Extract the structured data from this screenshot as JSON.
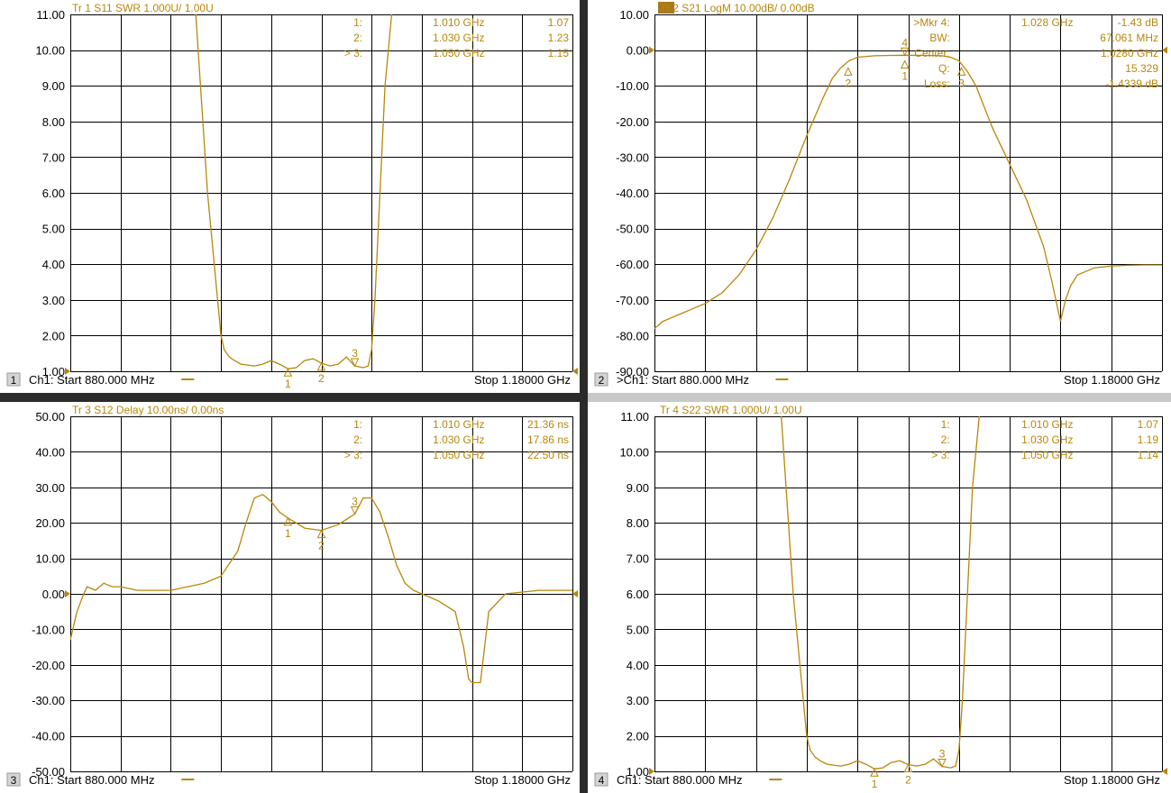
{
  "colors": {
    "trace": "#b8860b",
    "grid": "#000000",
    "label_text": "#000000",
    "marker_text": "#b8860b",
    "active_title_bg": "#a9791d",
    "divider": "#2b2b2b"
  },
  "panes": [
    {
      "number": "1",
      "title": "Tr 1  S11 SWR 1.000U/  1.00U",
      "title_active": false,
      "yticks": [
        "11.00",
        "10.00",
        "9.00",
        "8.00",
        "7.00",
        "6.00",
        "5.00",
        "4.00",
        "3.00",
        "2.00",
        "1.00"
      ],
      "ref_value": 1,
      "start": "Ch1: Start  880.000 MHz",
      "stop": "Stop  1.18000 GHz",
      "marker_table": [
        {
          "id": "1:",
          "freq": "1.010 GHz",
          "val": "1.07"
        },
        {
          "id": "2:",
          "freq": "1.030 GHz",
          "val": "1.23"
        },
        {
          "id": "> 3:",
          "freq": "1.050 GHz",
          "val": "1.15"
        }
      ],
      "markers": [
        {
          "label": "1",
          "x": 1.01,
          "y": 1.07,
          "dir": "up"
        },
        {
          "label": "2",
          "x": 1.03,
          "y": 1.23,
          "dir": "up"
        },
        {
          "label": "3",
          "x": 1.05,
          "y": 1.15,
          "dir": "down"
        }
      ]
    },
    {
      "number": "2",
      "title": "Tr 2  S21 LogM 10.00dB/  0.00dB",
      "title_active": true,
      "yticks": [
        "10.00",
        "0.00",
        "-10.00",
        "-20.00",
        "-30.00",
        "-40.00",
        "-50.00",
        "-60.00",
        "-70.00",
        "-80.00",
        "-90.00"
      ],
      "ref_value": 0,
      "start": ">Ch1: Start  880.000 MHz",
      "stop": "Stop  1.18000 GHz",
      "marker_table": [
        {
          "id": ">Mkr 4:",
          "freq": "1.028 GHz",
          "val": "-1.43 dB"
        },
        {
          "id": "BW:",
          "freq": "",
          "val": "67.061 MHz"
        },
        {
          "id": "Center:",
          "freq": "",
          "val": "1.0280 GHz"
        },
        {
          "id": "Q:",
          "freq": "",
          "val": "15.329"
        },
        {
          "id": "Loss:",
          "freq": "",
          "val": "-1.4339 dB"
        }
      ],
      "markers": [
        {
          "label": "1",
          "x": 1.028,
          "y": -3.0,
          "dir": "up"
        },
        {
          "label": "2",
          "x": 0.9945,
          "y": -5.0,
          "dir": "up"
        },
        {
          "label": "3",
          "x": 1.0615,
          "y": -5.0,
          "dir": "up"
        },
        {
          "label": "4",
          "x": 1.028,
          "y": -1.43,
          "dir": "down"
        }
      ]
    },
    {
      "number": "3",
      "title": "Tr 3  S12 Delay 10.00ns/  0.00ns",
      "title_active": false,
      "yticks": [
        "50.00",
        "40.00",
        "30.00",
        "20.00",
        "10.00",
        "0.00",
        "-10.00",
        "-20.00",
        "-30.00",
        "-40.00",
        "-50.00"
      ],
      "ref_value": 0,
      "start": "Ch1: Start  880.000 MHz",
      "stop": "Stop  1.18000 GHz",
      "marker_table": [
        {
          "id": "1:",
          "freq": "1.010 GHz",
          "val": "21.36 ns"
        },
        {
          "id": "2:",
          "freq": "1.030 GHz",
          "val": "17.86 ns"
        },
        {
          "id": "> 3:",
          "freq": "1.050 GHz",
          "val": "22.50 ns"
        }
      ],
      "markers": [
        {
          "label": "1",
          "x": 1.01,
          "y": 21.36,
          "dir": "up"
        },
        {
          "label": "2",
          "x": 1.03,
          "y": 17.86,
          "dir": "up"
        },
        {
          "label": "3",
          "x": 1.05,
          "y": 22.5,
          "dir": "down"
        }
      ]
    },
    {
      "number": "4",
      "title": "Tr 4  S22 SWR 1.000U/  1.00U",
      "title_active": false,
      "yticks": [
        "11.00",
        "10.00",
        "9.00",
        "8.00",
        "7.00",
        "6.00",
        "5.00",
        "4.00",
        "3.00",
        "2.00",
        "1.00"
      ],
      "ref_value": 1,
      "start": "Ch1: Start  880.000 MHz",
      "stop": "Stop  1.18000 GHz",
      "marker_table": [
        {
          "id": "1:",
          "freq": "1.010 GHz",
          "val": "1.07"
        },
        {
          "id": "2:",
          "freq": "1.030 GHz",
          "val": "1.19"
        },
        {
          "id": "> 3:",
          "freq": "1.050 GHz",
          "val": "1.14"
        }
      ],
      "markers": [
        {
          "label": "1",
          "x": 1.01,
          "y": 1.07,
          "dir": "up"
        },
        {
          "label": "2",
          "x": 1.03,
          "y": 1.19,
          "dir": "up"
        },
        {
          "label": "3",
          "x": 1.05,
          "y": 1.14,
          "dir": "down"
        }
      ]
    }
  ],
  "chart_data": [
    {
      "type": "line",
      "title": "Tr 1  S11 SWR 1.000U/  1.00U",
      "xlabel": "",
      "ylabel": "",
      "xlim": [
        0.88,
        1.18
      ],
      "ylim": [
        1,
        11
      ],
      "grid": true,
      "series": [
        {
          "x": [
            0.955,
            0.962,
            0.968,
            0.97,
            0.972,
            0.975,
            0.978,
            0.982,
            0.99,
            0.995,
            1.0,
            1.005,
            1.01,
            1.015,
            1.02,
            1.025,
            1.03,
            1.035,
            1.04,
            1.045,
            1.05,
            1.055,
            1.058,
            1.06,
            1.062,
            1.065,
            1.068,
            1.072
          ],
          "y": [
            11.0,
            6.0,
            3.0,
            2.0,
            1.6,
            1.4,
            1.3,
            1.2,
            1.15,
            1.2,
            1.3,
            1.2,
            1.07,
            1.1,
            1.3,
            1.35,
            1.23,
            1.15,
            1.2,
            1.4,
            1.15,
            1.1,
            1.15,
            1.6,
            3.0,
            6.0,
            9.0,
            11.0
          ]
        }
      ]
    },
    {
      "type": "line",
      "title": "Tr 2  S21 LogM 10.00dB/  0.00dB",
      "xlabel": "",
      "ylabel": "",
      "xlim": [
        0.88,
        1.18
      ],
      "ylim": [
        -90,
        10
      ],
      "grid": true,
      "series": [
        {
          "x": [
            0.88,
            0.885,
            0.89,
            0.895,
            0.9,
            0.905,
            0.91,
            0.92,
            0.93,
            0.94,
            0.95,
            0.96,
            0.97,
            0.98,
            0.985,
            0.99,
            0.995,
            1.0,
            1.01,
            1.02,
            1.028,
            1.04,
            1.05,
            1.055,
            1.06,
            1.065,
            1.07,
            1.075,
            1.08,
            1.09,
            1.1,
            1.11,
            1.115,
            1.12,
            1.123,
            1.126,
            1.13,
            1.14,
            1.15,
            1.16,
            1.17,
            1.18
          ],
          "y": [
            -78,
            -76,
            -75,
            -74,
            -73,
            -72,
            -71,
            -68,
            -63,
            -56,
            -47,
            -36,
            -24,
            -13,
            -8,
            -5,
            -3,
            -2,
            -1.6,
            -1.5,
            -1.43,
            -1.5,
            -1.6,
            -2,
            -3,
            -6,
            -10,
            -16,
            -22,
            -32,
            -42,
            -55,
            -65,
            -76,
            -70,
            -66,
            -63,
            -61,
            -60.5,
            -60.3,
            -60.2,
            -60.2
          ]
        }
      ]
    },
    {
      "type": "line",
      "title": "Tr 3  S12 Delay 10.00ns/  0.00ns",
      "xlabel": "",
      "ylabel": "",
      "xlim": [
        0.88,
        1.18
      ],
      "ylim": [
        -50,
        50
      ],
      "grid": true,
      "series": [
        {
          "x": [
            0.88,
            0.884,
            0.888,
            0.89,
            0.895,
            0.9,
            0.905,
            0.91,
            0.92,
            0.93,
            0.94,
            0.95,
            0.96,
            0.97,
            0.98,
            0.985,
            0.99,
            0.995,
            1.0,
            1.005,
            1.01,
            1.02,
            1.03,
            1.04,
            1.05,
            1.055,
            1.06,
            1.065,
            1.07,
            1.075,
            1.08,
            1.085,
            1.09,
            1.1,
            1.11,
            1.115,
            1.118,
            1.12,
            1.125,
            1.13,
            1.14,
            1.16,
            1.18
          ],
          "y": [
            -13,
            -5,
            0,
            2,
            1,
            3,
            2,
            2,
            1,
            1,
            1,
            2,
            3,
            5,
            12,
            20,
            27,
            28,
            26,
            23,
            21.36,
            18.5,
            17.86,
            19.5,
            22.5,
            27,
            27,
            23,
            16,
            8,
            3,
            1,
            0,
            -2,
            -5,
            -15,
            -24,
            -25,
            -25,
            -5,
            0,
            1,
            1
          ]
        }
      ]
    },
    {
      "type": "line",
      "title": "Tr 4  S22 SWR 1.000U/  1.00U",
      "xlabel": "",
      "ylabel": "",
      "xlim": [
        0.88,
        1.18
      ],
      "ylim": [
        1,
        11
      ],
      "grid": true,
      "series": [
        {
          "x": [
            0.955,
            0.962,
            0.968,
            0.97,
            0.972,
            0.975,
            0.978,
            0.982,
            0.99,
            0.995,
            1.0,
            1.005,
            1.01,
            1.015,
            1.02,
            1.025,
            1.03,
            1.035,
            1.04,
            1.045,
            1.05,
            1.055,
            1.058,
            1.06,
            1.062,
            1.065,
            1.068,
            1.072
          ],
          "y": [
            11.0,
            6.0,
            3.0,
            2.0,
            1.6,
            1.4,
            1.3,
            1.2,
            1.15,
            1.2,
            1.3,
            1.2,
            1.07,
            1.1,
            1.25,
            1.3,
            1.19,
            1.15,
            1.2,
            1.35,
            1.14,
            1.1,
            1.15,
            1.6,
            3.0,
            6.0,
            9.0,
            11.0
          ]
        }
      ]
    }
  ]
}
